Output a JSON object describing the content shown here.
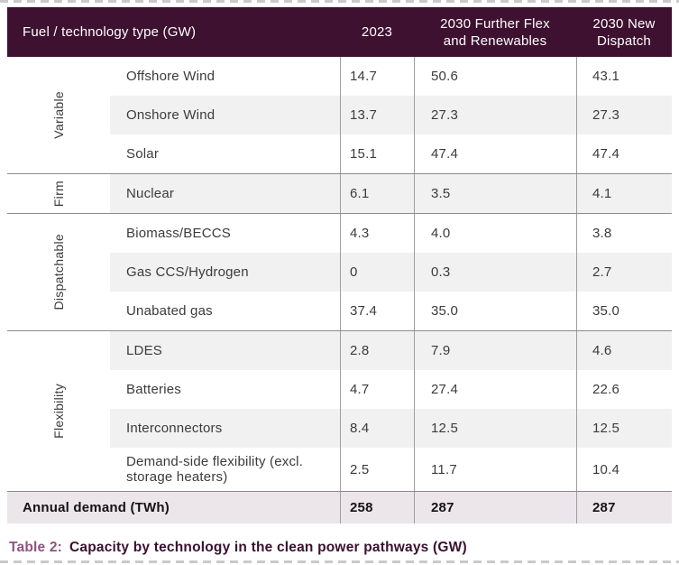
{
  "table": {
    "header": {
      "col0": "Fuel / technology type (GW)",
      "col1": "2023",
      "col2": "2030 Further Flex and Renewables",
      "col3": "2030 New Dispatch"
    },
    "sections": [
      {
        "group": "Variable",
        "rows": [
          {
            "name": "Offshore Wind",
            "values": [
              "14.7",
              "50.6",
              "43.1"
            ]
          },
          {
            "name": "Onshore Wind",
            "values": [
              "13.7",
              "27.3",
              "27.3"
            ]
          },
          {
            "name": "Solar",
            "values": [
              "15.1",
              "47.4",
              "47.4"
            ]
          }
        ]
      },
      {
        "group": "Firm",
        "rows": [
          {
            "name": "Nuclear",
            "values": [
              "6.1",
              "3.5",
              "4.1"
            ]
          }
        ]
      },
      {
        "group": "Dispatchable",
        "rows": [
          {
            "name": "Biomass/BECCS",
            "values": [
              "4.3",
              "4.0",
              "3.8"
            ]
          },
          {
            "name": "Gas CCS/Hydrogen",
            "values": [
              "0",
              "0.3",
              "2.7"
            ]
          },
          {
            "name": "Unabated gas",
            "values": [
              "37.4",
              "35.0",
              "35.0"
            ]
          }
        ]
      },
      {
        "group": "Flexibility",
        "rows": [
          {
            "name": "LDES",
            "values": [
              "2.8",
              "7.9",
              "4.6"
            ]
          },
          {
            "name": "Batteries",
            "values": [
              "4.7",
              "27.4",
              "22.6"
            ]
          },
          {
            "name": "Interconnectors",
            "values": [
              "8.4",
              "12.5",
              "12.5"
            ]
          },
          {
            "name": "Demand-side flexibility (excl. storage heaters)",
            "values": [
              "2.5",
              "11.7",
              "10.4"
            ]
          }
        ]
      }
    ],
    "footer_row": {
      "label": "Annual demand (TWh)",
      "values": [
        "258",
        "287",
        "287"
      ]
    }
  },
  "caption": {
    "label": "Table 2:",
    "text": "Capacity by technology in the clean power pathways (GW)"
  },
  "colors": {
    "header_background": "#3e1130",
    "stripe_gray": "#f2f1f1",
    "annual_row_background": "#ece6eb",
    "caption_label": "#8f5380",
    "caption_text": "#3a1031",
    "divider_gray": "#8c8c8c"
  }
}
